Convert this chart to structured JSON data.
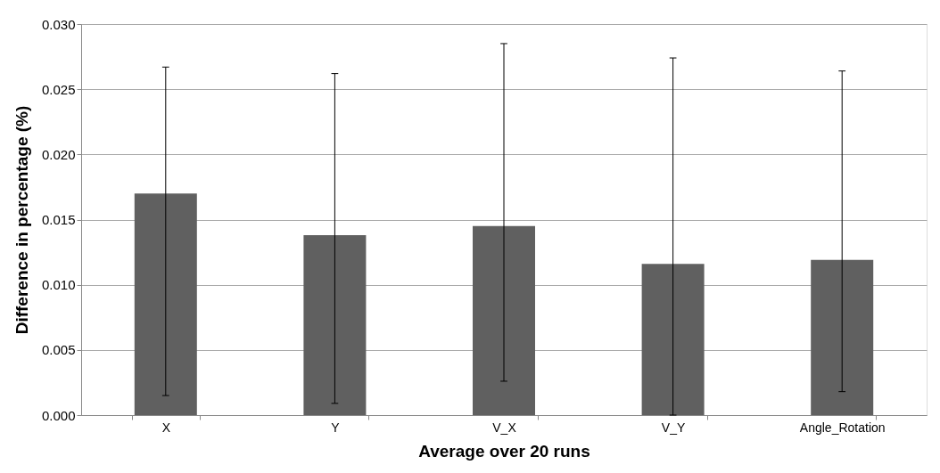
{
  "chart_data": {
    "type": "bar",
    "xlabel": "Average over 20 runs",
    "ylabel": "Difference in percentage (%)",
    "categories": [
      "X",
      "Y",
      "V_X",
      "V_Y",
      "Angle_Rotation"
    ],
    "values": [
      0.017,
      0.0138,
      0.0145,
      0.0116,
      0.0119
    ],
    "errors": [
      [
        0.0015,
        0.0267
      ],
      [
        0.0009,
        0.0262
      ],
      [
        0.0026,
        0.0285
      ],
      [
        0.0,
        0.0274
      ],
      [
        0.0018,
        0.0264
      ]
    ],
    "color": "#606060",
    "ylim": [
      0,
      0.03
    ],
    "yticks": [
      {
        "value": 0,
        "label": "0.000"
      },
      {
        "value": 0.005,
        "label": "0.005"
      },
      {
        "value": 0.01,
        "label": "0.010"
      },
      {
        "value": 0.015,
        "label": "0.015"
      },
      {
        "value": 0.02,
        "label": "0.020"
      },
      {
        "value": 0.025,
        "label": "0.025"
      },
      {
        "value": 0.03,
        "label": "0.030"
      }
    ],
    "grid": "y"
  }
}
